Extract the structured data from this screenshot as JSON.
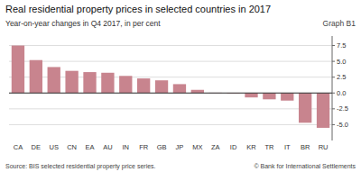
{
  "chart_data": {
    "type": "bar",
    "title": "Real residential property prices in selected countries in 2017",
    "subtitle": "Year-on-year changes in Q4 2017, in per cent",
    "annotations": [
      "Graph B1",
      "Source: BIS selected residential property price series.",
      "© Bank for International Settlements"
    ],
    "categories": [
      "CA",
      "DE",
      "US",
      "CN",
      "EA",
      "AU",
      "IN",
      "FR",
      "GB",
      "JP",
      "MX",
      "ZA",
      "ID",
      "KR",
      "TR",
      "IT",
      "BR",
      "RU"
    ],
    "values": [
      7.5,
      5.2,
      4.1,
      3.5,
      3.3,
      3.2,
      2.7,
      2.3,
      2.0,
      1.4,
      0.5,
      0.05,
      -0.1,
      -0.7,
      -1.0,
      -1.2,
      -4.7,
      -5.5
    ],
    "color": "#c8848e",
    "ylim": [
      -7.5,
      9.0
    ],
    "yticks": [
      {
        "value": -5.0,
        "label": "-5.0"
      },
      -2.5,
      {
        "value": 0.0,
        "label": "0.0"
      },
      2.5,
      {
        "value": 5.0,
        "label": "5.0"
      },
      7.5
    ],
    "grid": true
  }
}
